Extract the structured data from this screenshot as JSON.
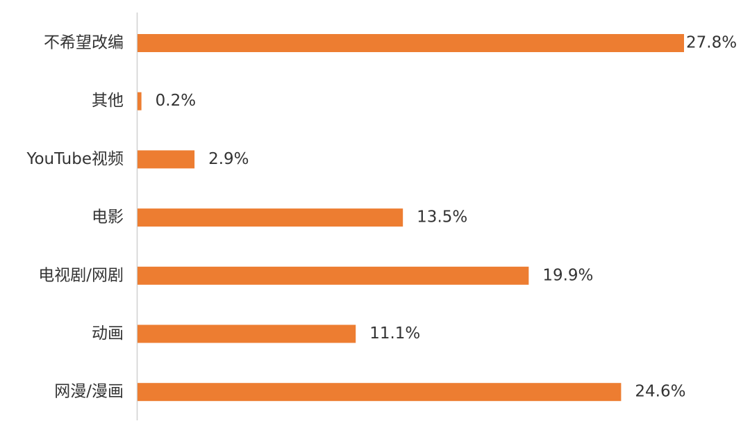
{
  "chart_data": {
    "type": "bar",
    "orientation": "horizontal",
    "categories": [
      "不希望改编",
      "其他",
      "YouTube视频",
      "电影",
      "电视剧/网剧",
      "动画",
      "网漫/漫画"
    ],
    "values": [
      27.8,
      0.2,
      2.9,
      13.5,
      19.9,
      11.1,
      24.6
    ],
    "value_labels": [
      "27.8%",
      "0.2%",
      "2.9%",
      "13.5%",
      "19.9%",
      "11.1%",
      "24.6%"
    ],
    "color": "#ed7d31"
  }
}
